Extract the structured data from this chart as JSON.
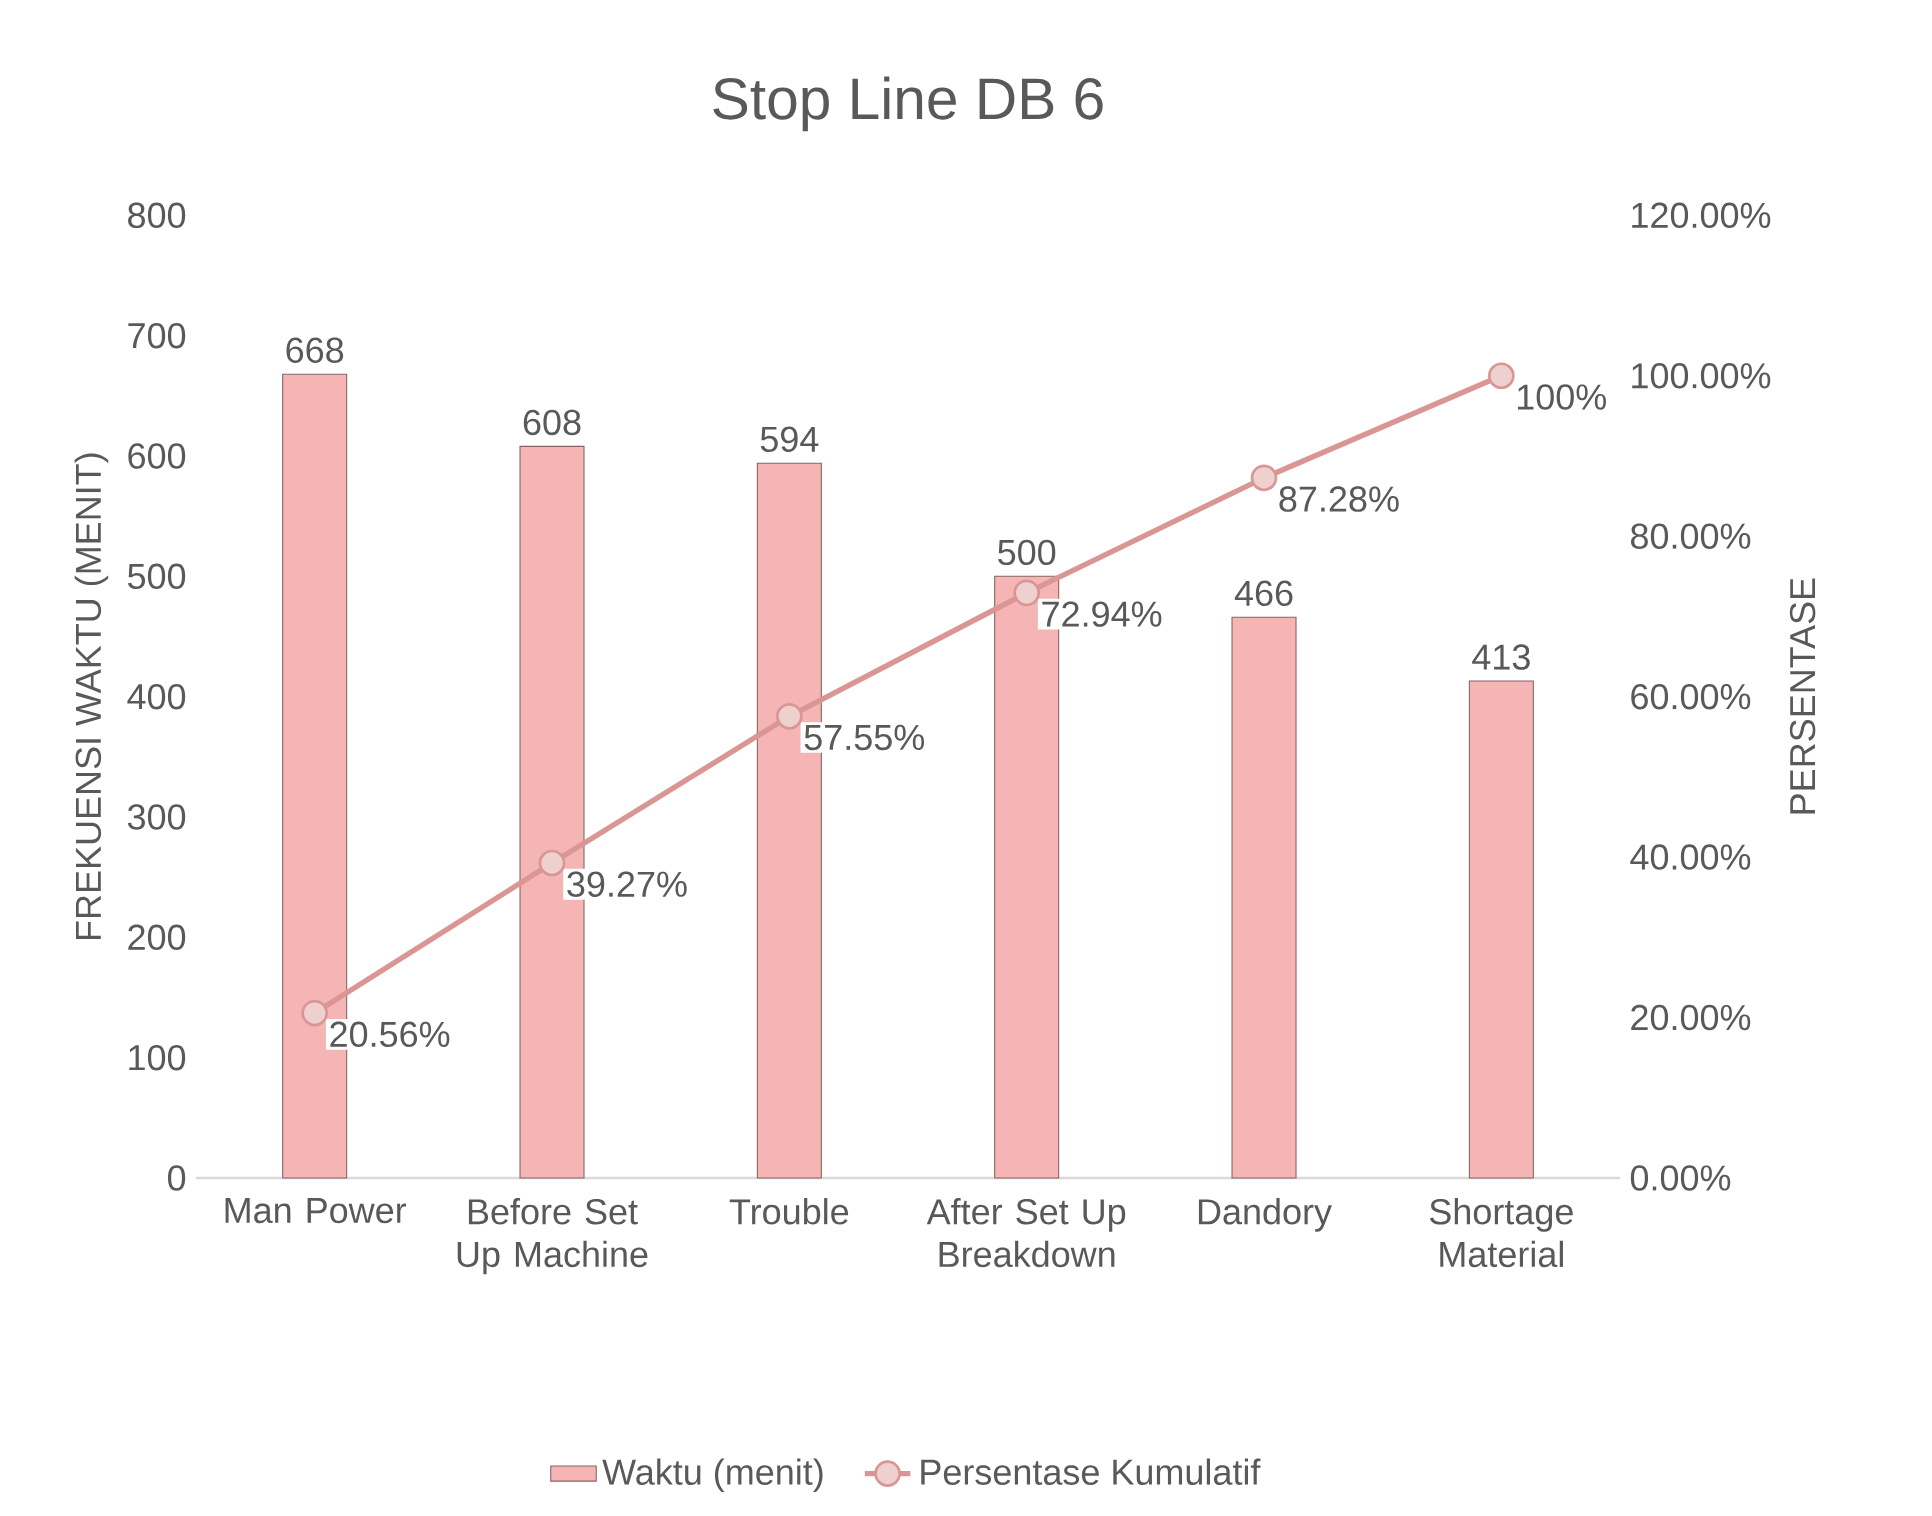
{
  "chart_data": {
    "type": "bar",
    "title": "Stop Line DB 6",
    "ylabel": "FREKUENSI WAKTU (MENIT)",
    "y2label": "PERSENTASE",
    "categories": [
      "Man Power",
      "Before Set Up Machine",
      "Trouble",
      "After Set Up Breakdown",
      "Dandory",
      "Shortage Material"
    ],
    "series": [
      {
        "name": "Waktu (menit)",
        "color": "#f4b5b4",
        "values": [
          668,
          608,
          594,
          500,
          466,
          413
        ],
        "value_labels": [
          "668",
          "608",
          "594",
          "500",
          "466",
          "413"
        ]
      },
      {
        "name": "Persentase Kumulatif",
        "type": "line",
        "axis": "y2",
        "color": "#d99694",
        "values": [
          20.56,
          39.27,
          57.55,
          72.94,
          87.28,
          100
        ],
        "value_labels": [
          "20.56%",
          "39.27%",
          "57.55%",
          "72.94%",
          "87.28%",
          "100%"
        ]
      }
    ],
    "ylim": [
      0,
      800
    ],
    "yticks": [
      0,
      100,
      200,
      300,
      400,
      500,
      600,
      700,
      800
    ],
    "y2lim": [
      0,
      120
    ],
    "y2ticks": [
      {
        "value": 0,
        "label": "0.00%"
      },
      {
        "value": 20,
        "label": "20.00%"
      },
      {
        "value": 40,
        "label": "40.00%"
      },
      {
        "value": 60,
        "label": "60.00%"
      },
      {
        "value": 80,
        "label": "80.00%"
      },
      {
        "value": 100,
        "label": "100.00%"
      },
      {
        "value": 120,
        "label": "120.00%"
      }
    ],
    "grid": false,
    "legend": "bottom",
    "marker": "circle"
  }
}
